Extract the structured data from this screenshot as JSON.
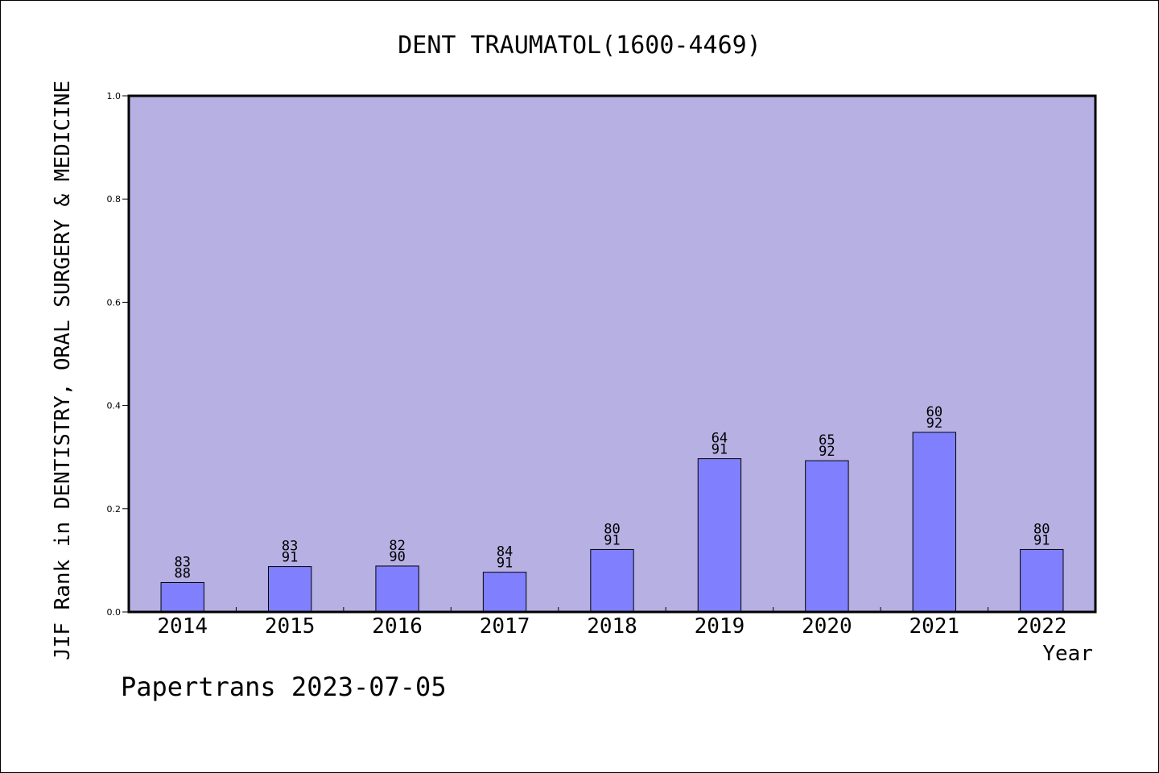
{
  "chart_data": {
    "type": "bar",
    "title": "DENT TRAUMATOL(1600-4469)",
    "xlabel": "Year",
    "ylabel": "JIF Rank in DENTISTRY, ORAL SURGERY & MEDICINE",
    "ylim": [
      0,
      1
    ],
    "yticks": [
      "0.0",
      "0.2",
      "0.4",
      "0.6",
      "0.8",
      "1.0"
    ],
    "categories": [
      "2014",
      "2015",
      "2016",
      "2017",
      "2018",
      "2019",
      "2020",
      "2021",
      "2022"
    ],
    "values": [
      0.057,
      0.088,
      0.089,
      0.077,
      0.121,
      0.297,
      0.293,
      0.348,
      0.121
    ],
    "rank_labels": [
      "83",
      "83",
      "82",
      "84",
      "80",
      "64",
      "65",
      "60",
      "80"
    ],
    "total_labels": [
      "88",
      "91",
      "90",
      "91",
      "91",
      "91",
      "92",
      "92",
      "91"
    ],
    "grid": false,
    "colors": {
      "plot_background": "#b6b0e3",
      "bar_fill": "#8080ff",
      "bar_stroke": "#000000"
    }
  },
  "footer": "Papertrans 2023-07-05"
}
